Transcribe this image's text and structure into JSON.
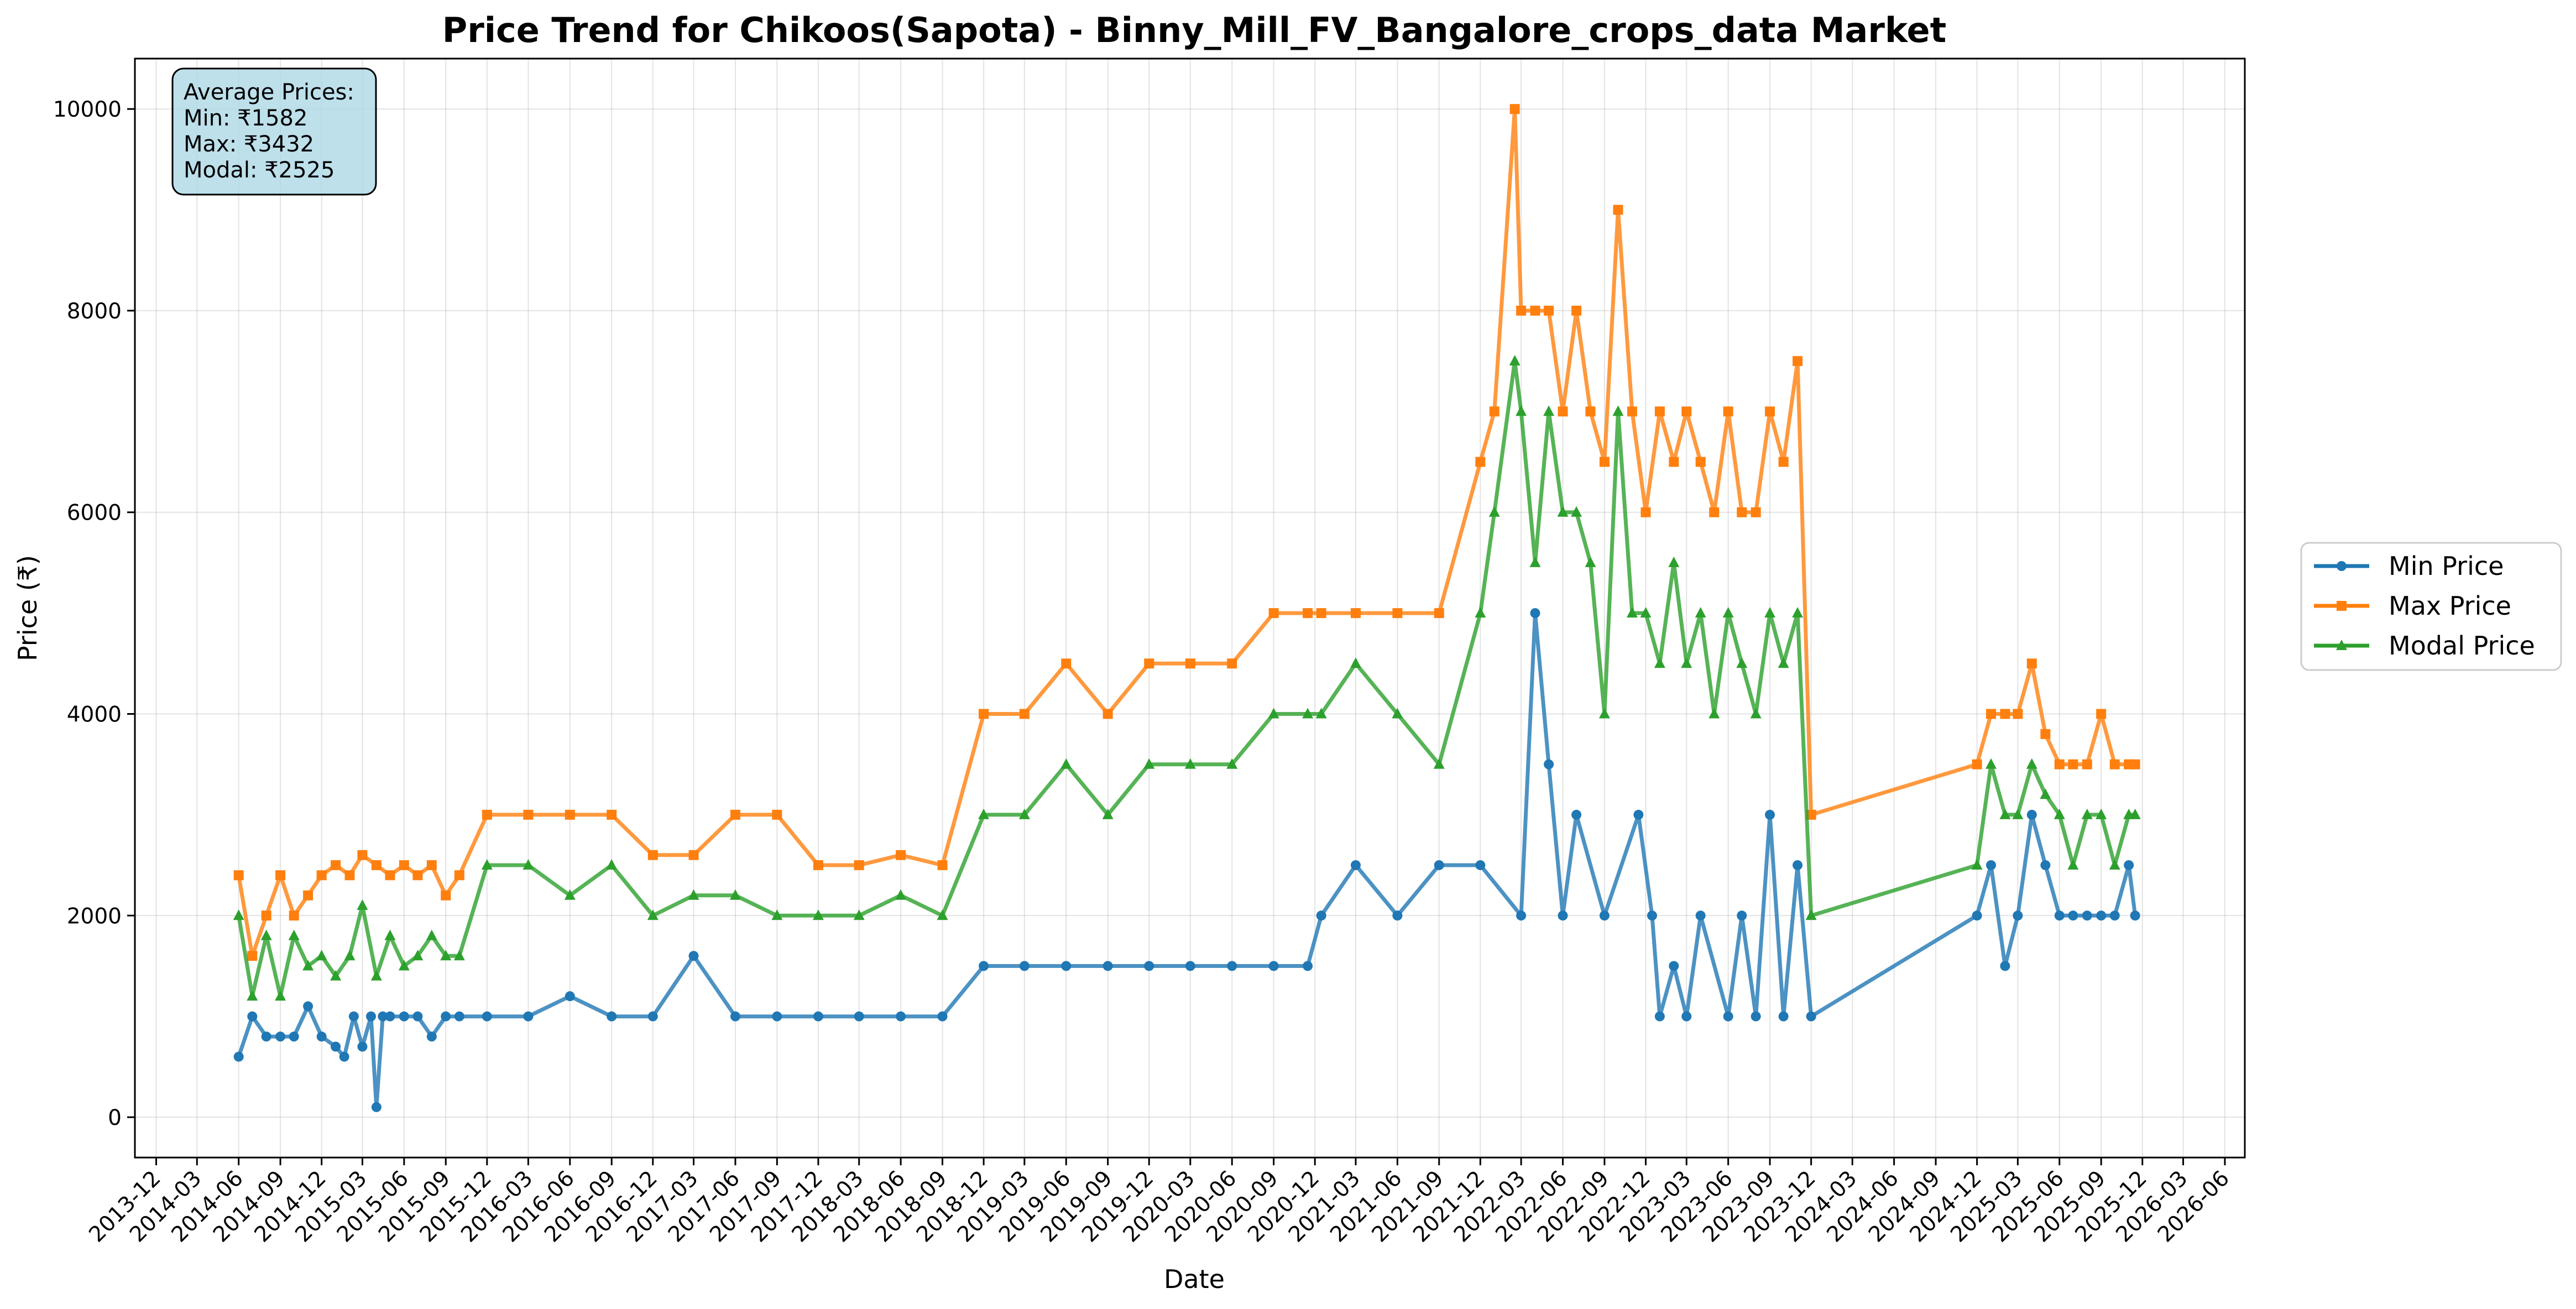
{
  "chart_data": {
    "type": "line",
    "title": "Price Trend for Chikoos(Sapota) - Binny_Mill_FV_Bangalore_crops_data Market",
    "xlabel": "Date",
    "ylabel": "Price (₹)",
    "ylim": [
      -400,
      10500
    ],
    "xlim": [
      "2013-10-15",
      "2026-07-15"
    ],
    "y_ticks": [
      0,
      2000,
      4000,
      6000,
      8000,
      10000
    ],
    "x_ticks": [
      "2013-12",
      "2014-03",
      "2014-06",
      "2014-09",
      "2014-12",
      "2015-03",
      "2015-06",
      "2015-09",
      "2015-12",
      "2016-03",
      "2016-06",
      "2016-09",
      "2016-12",
      "2017-03",
      "2017-06",
      "2017-09",
      "2017-12",
      "2018-03",
      "2018-06",
      "2018-09",
      "2018-12",
      "2019-03",
      "2019-06",
      "2019-09",
      "2019-12",
      "2020-03",
      "2020-06",
      "2020-09",
      "2020-12",
      "2021-03",
      "2021-06",
      "2021-09",
      "2021-12",
      "2022-03",
      "2022-06",
      "2022-09",
      "2022-12",
      "2023-03",
      "2023-06",
      "2023-09",
      "2023-12",
      "2024-03",
      "2024-06",
      "2024-09",
      "2024-12",
      "2025-03",
      "2025-06",
      "2025-09",
      "2025-12",
      "2026-03",
      "2026-06"
    ],
    "grid": true,
    "legend_position": "right",
    "annotation": {
      "lines": [
        "Average Prices:",
        "Min: ₹1582",
        "Max: ₹3432",
        "Modal: ₹2525"
      ]
    },
    "series": [
      {
        "name": "Min Price",
        "color": "#1f77b4",
        "marker": "circle",
        "points": [
          [
            "2014-06-01",
            600
          ],
          [
            "2014-07-01",
            1000
          ],
          [
            "2014-08-01",
            800
          ],
          [
            "2014-09-01",
            800
          ],
          [
            "2014-10-01",
            800
          ],
          [
            "2014-11-01",
            1100
          ],
          [
            "2014-12-01",
            800
          ],
          [
            "2015-01-01",
            700
          ],
          [
            "2015-01-20",
            600
          ],
          [
            "2015-02-10",
            1000
          ],
          [
            "2015-03-01",
            700
          ],
          [
            "2015-03-20",
            1000
          ],
          [
            "2015-04-01",
            100
          ],
          [
            "2015-04-15",
            1000
          ],
          [
            "2015-05-01",
            1000
          ],
          [
            "2015-06-01",
            1000
          ],
          [
            "2015-07-01",
            1000
          ],
          [
            "2015-08-01",
            800
          ],
          [
            "2015-09-01",
            1000
          ],
          [
            "2015-10-01",
            1000
          ],
          [
            "2015-12-01",
            1000
          ],
          [
            "2016-03-01",
            1000
          ],
          [
            "2016-06-01",
            1200
          ],
          [
            "2016-09-01",
            1000
          ],
          [
            "2016-12-01",
            1000
          ],
          [
            "2017-03-01",
            1600
          ],
          [
            "2017-06-01",
            1000
          ],
          [
            "2017-09-01",
            1000
          ],
          [
            "2017-12-01",
            1000
          ],
          [
            "2018-03-01",
            1000
          ],
          [
            "2018-06-01",
            1000
          ],
          [
            "2018-09-01",
            1000
          ],
          [
            "2018-12-01",
            1500
          ],
          [
            "2019-03-01",
            1500
          ],
          [
            "2019-06-01",
            1500
          ],
          [
            "2019-09-01",
            1500
          ],
          [
            "2019-12-01",
            1500
          ],
          [
            "2020-03-01",
            1500
          ],
          [
            "2020-06-01",
            1500
          ],
          [
            "2020-09-01",
            1500
          ],
          [
            "2020-11-15",
            1500
          ],
          [
            "2020-12-15",
            2000
          ],
          [
            "2021-03-01",
            2500
          ],
          [
            "2021-06-01",
            2000
          ],
          [
            "2021-09-01",
            2500
          ],
          [
            "2021-12-01",
            2500
          ],
          [
            "2022-03-01",
            2000
          ],
          [
            "2022-04-01",
            5000
          ],
          [
            "2022-05-01",
            3500
          ],
          [
            "2022-06-01",
            2000
          ],
          [
            "2022-07-01",
            3000
          ],
          [
            "2022-09-01",
            2000
          ],
          [
            "2022-11-15",
            3000
          ],
          [
            "2022-12-15",
            2000
          ],
          [
            "2023-01-01",
            1000
          ],
          [
            "2023-02-01",
            1500
          ],
          [
            "2023-03-01",
            1000
          ],
          [
            "2023-04-01",
            2000
          ],
          [
            "2023-06-01",
            1000
          ],
          [
            "2023-07-01",
            2000
          ],
          [
            "2023-08-01",
            1000
          ],
          [
            "2023-09-01",
            3000
          ],
          [
            "2023-10-01",
            1000
          ],
          [
            "2023-11-01",
            2500
          ],
          [
            "2023-12-01",
            1000
          ],
          [
            "2024-12-01",
            2000
          ],
          [
            "2025-01-01",
            2500
          ],
          [
            "2025-02-01",
            1500
          ],
          [
            "2025-03-01",
            2000
          ],
          [
            "2025-04-01",
            3000
          ],
          [
            "2025-05-01",
            2500
          ],
          [
            "2025-06-01",
            2000
          ],
          [
            "2025-07-01",
            2000
          ],
          [
            "2025-08-01",
            2000
          ],
          [
            "2025-09-01",
            2000
          ],
          [
            "2025-10-01",
            2000
          ],
          [
            "2025-11-01",
            2500
          ],
          [
            "2025-11-15",
            2000
          ]
        ]
      },
      {
        "name": "Max Price",
        "color": "#ff7f0e",
        "marker": "square",
        "points": [
          [
            "2014-06-01",
            2400
          ],
          [
            "2014-07-01",
            1600
          ],
          [
            "2014-08-01",
            2000
          ],
          [
            "2014-09-01",
            2400
          ],
          [
            "2014-10-01",
            2000
          ],
          [
            "2014-11-01",
            2200
          ],
          [
            "2014-12-01",
            2400
          ],
          [
            "2015-01-01",
            2500
          ],
          [
            "2015-02-01",
            2400
          ],
          [
            "2015-03-01",
            2600
          ],
          [
            "2015-04-01",
            2500
          ],
          [
            "2015-05-01",
            2400
          ],
          [
            "2015-06-01",
            2500
          ],
          [
            "2015-07-01",
            2400
          ],
          [
            "2015-08-01",
            2500
          ],
          [
            "2015-09-01",
            2200
          ],
          [
            "2015-10-01",
            2400
          ],
          [
            "2015-12-01",
            3000
          ],
          [
            "2016-03-01",
            3000
          ],
          [
            "2016-06-01",
            3000
          ],
          [
            "2016-09-01",
            3000
          ],
          [
            "2016-12-01",
            2600
          ],
          [
            "2017-03-01",
            2600
          ],
          [
            "2017-06-01",
            3000
          ],
          [
            "2017-09-01",
            3000
          ],
          [
            "2017-12-01",
            2500
          ],
          [
            "2018-03-01",
            2500
          ],
          [
            "2018-06-01",
            2600
          ],
          [
            "2018-09-01",
            2500
          ],
          [
            "2018-12-01",
            4000
          ],
          [
            "2019-03-01",
            4000
          ],
          [
            "2019-06-01",
            4500
          ],
          [
            "2019-09-01",
            4000
          ],
          [
            "2019-12-01",
            4500
          ],
          [
            "2020-03-01",
            4500
          ],
          [
            "2020-06-01",
            4500
          ],
          [
            "2020-09-01",
            5000
          ],
          [
            "2020-11-15",
            5000
          ],
          [
            "2020-12-15",
            5000
          ],
          [
            "2021-03-01",
            5000
          ],
          [
            "2021-06-01",
            5000
          ],
          [
            "2021-09-01",
            5000
          ],
          [
            "2021-12-01",
            6500
          ],
          [
            "2022-01-01",
            7000
          ],
          [
            "2022-02-15",
            10000
          ],
          [
            "2022-03-01",
            8000
          ],
          [
            "2022-04-01",
            8000
          ],
          [
            "2022-05-01",
            8000
          ],
          [
            "2022-06-01",
            7000
          ],
          [
            "2022-07-01",
            8000
          ],
          [
            "2022-08-01",
            7000
          ],
          [
            "2022-09-01",
            6500
          ],
          [
            "2022-10-01",
            9000
          ],
          [
            "2022-11-01",
            7000
          ],
          [
            "2022-12-01",
            6000
          ],
          [
            "2023-01-01",
            7000
          ],
          [
            "2023-02-01",
            6500
          ],
          [
            "2023-03-01",
            7000
          ],
          [
            "2023-04-01",
            6500
          ],
          [
            "2023-05-01",
            6000
          ],
          [
            "2023-06-01",
            7000
          ],
          [
            "2023-07-01",
            6000
          ],
          [
            "2023-08-01",
            6000
          ],
          [
            "2023-09-01",
            7000
          ],
          [
            "2023-10-01",
            6500
          ],
          [
            "2023-11-01",
            7500
          ],
          [
            "2023-12-01",
            3000
          ],
          [
            "2024-12-01",
            3500
          ],
          [
            "2025-01-01",
            4000
          ],
          [
            "2025-02-01",
            4000
          ],
          [
            "2025-03-01",
            4000
          ],
          [
            "2025-04-01",
            4500
          ],
          [
            "2025-05-01",
            3800
          ],
          [
            "2025-06-01",
            3500
          ],
          [
            "2025-07-01",
            3500
          ],
          [
            "2025-08-01",
            3500
          ],
          [
            "2025-09-01",
            4000
          ],
          [
            "2025-10-01",
            3500
          ],
          [
            "2025-11-01",
            3500
          ],
          [
            "2025-11-15",
            3500
          ]
        ]
      },
      {
        "name": "Modal Price",
        "color": "#2ca02c",
        "marker": "triangle",
        "points": [
          [
            "2014-06-01",
            2000
          ],
          [
            "2014-07-01",
            1200
          ],
          [
            "2014-08-01",
            1800
          ],
          [
            "2014-09-01",
            1200
          ],
          [
            "2014-10-01",
            1800
          ],
          [
            "2014-11-01",
            1500
          ],
          [
            "2014-12-01",
            1600
          ],
          [
            "2015-01-01",
            1400
          ],
          [
            "2015-02-01",
            1600
          ],
          [
            "2015-03-01",
            2100
          ],
          [
            "2015-04-01",
            1400
          ],
          [
            "2015-05-01",
            1800
          ],
          [
            "2015-06-01",
            1500
          ],
          [
            "2015-07-01",
            1600
          ],
          [
            "2015-08-01",
            1800
          ],
          [
            "2015-09-01",
            1600
          ],
          [
            "2015-10-01",
            1600
          ],
          [
            "2015-12-01",
            2500
          ],
          [
            "2016-03-01",
            2500
          ],
          [
            "2016-06-01",
            2200
          ],
          [
            "2016-09-01",
            2500
          ],
          [
            "2016-12-01",
            2000
          ],
          [
            "2017-03-01",
            2200
          ],
          [
            "2017-06-01",
            2200
          ],
          [
            "2017-09-01",
            2000
          ],
          [
            "2017-12-01",
            2000
          ],
          [
            "2018-03-01",
            2000
          ],
          [
            "2018-06-01",
            2200
          ],
          [
            "2018-09-01",
            2000
          ],
          [
            "2018-12-01",
            3000
          ],
          [
            "2019-03-01",
            3000
          ],
          [
            "2019-06-01",
            3500
          ],
          [
            "2019-09-01",
            3000
          ],
          [
            "2019-12-01",
            3500
          ],
          [
            "2020-03-01",
            3500
          ],
          [
            "2020-06-01",
            3500
          ],
          [
            "2020-09-01",
            4000
          ],
          [
            "2020-11-15",
            4000
          ],
          [
            "2020-12-15",
            4000
          ],
          [
            "2021-03-01",
            4500
          ],
          [
            "2021-06-01",
            4000
          ],
          [
            "2021-09-01",
            3500
          ],
          [
            "2021-12-01",
            5000
          ],
          [
            "2022-01-01",
            6000
          ],
          [
            "2022-02-15",
            7500
          ],
          [
            "2022-03-01",
            7000
          ],
          [
            "2022-04-01",
            5500
          ],
          [
            "2022-05-01",
            7000
          ],
          [
            "2022-06-01",
            6000
          ],
          [
            "2022-07-01",
            6000
          ],
          [
            "2022-08-01",
            5500
          ],
          [
            "2022-09-01",
            4000
          ],
          [
            "2022-10-01",
            7000
          ],
          [
            "2022-11-01",
            5000
          ],
          [
            "2022-12-01",
            5000
          ],
          [
            "2023-01-01",
            4500
          ],
          [
            "2023-02-01",
            5500
          ],
          [
            "2023-03-01",
            4500
          ],
          [
            "2023-04-01",
            5000
          ],
          [
            "2023-05-01",
            4000
          ],
          [
            "2023-06-01",
            5000
          ],
          [
            "2023-07-01",
            4500
          ],
          [
            "2023-08-01",
            4000
          ],
          [
            "2023-09-01",
            5000
          ],
          [
            "2023-10-01",
            4500
          ],
          [
            "2023-11-01",
            5000
          ],
          [
            "2023-12-01",
            2000
          ],
          [
            "2024-12-01",
            2500
          ],
          [
            "2025-01-01",
            3500
          ],
          [
            "2025-02-01",
            3000
          ],
          [
            "2025-03-01",
            3000
          ],
          [
            "2025-04-01",
            3500
          ],
          [
            "2025-05-01",
            3200
          ],
          [
            "2025-06-01",
            3000
          ],
          [
            "2025-07-01",
            2500
          ],
          [
            "2025-08-01",
            3000
          ],
          [
            "2025-09-01",
            3000
          ],
          [
            "2025-10-01",
            2500
          ],
          [
            "2025-11-01",
            3000
          ],
          [
            "2025-11-15",
            3000
          ]
        ]
      }
    ]
  }
}
